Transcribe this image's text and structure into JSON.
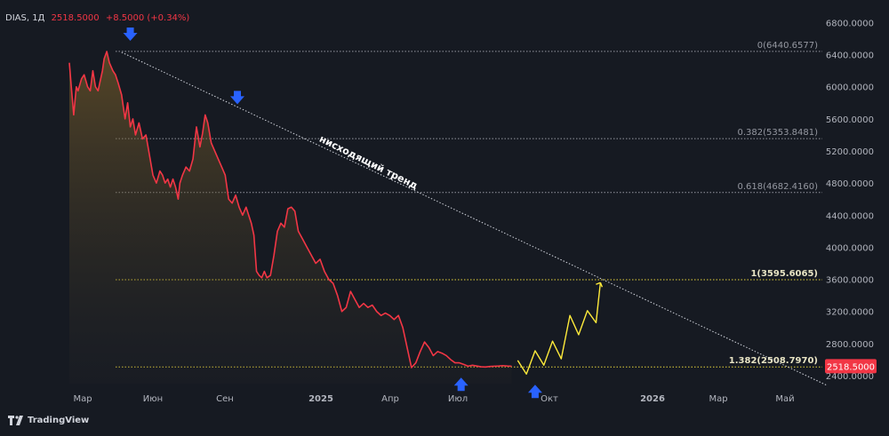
{
  "header": {
    "symbol": "DIAS, 1Д",
    "last": "2518.5000",
    "change": "+8.5000 (+0.34%)"
  },
  "brand": {
    "name": "TradingView",
    "icon": "tradingview-logo-icon"
  },
  "colors": {
    "background": "#161a22",
    "price_line": "#f23645",
    "projection": "#ffeb3b",
    "fib_line": "#9598a1",
    "fib_line_highlight": "#e6d43a",
    "trend_line": "#d1d4dc",
    "arrow": "#2962ff",
    "price_badge": "#f23645"
  },
  "chart_data": {
    "type": "line",
    "x_ticks": [
      "Мар",
      "Июн",
      "Сен",
      "2025",
      "Апр",
      "Июл",
      "Окт",
      "2026",
      "Мар",
      "Май"
    ],
    "y_ticks": [
      "2400.0000",
      "2800.0000",
      "3200.0000",
      "3600.0000",
      "4000.0000",
      "4400.0000",
      "4800.0000",
      "5200.0000",
      "5600.0000",
      "6000.0000",
      "6400.0000",
      "6800.0000"
    ],
    "ylim": [
      2220,
      6930
    ],
    "last_price_badge": "2518.5000",
    "fib_levels": [
      {
        "label": "0(6440.6577)",
        "value": 6440.6577,
        "highlight": false
      },
      {
        "label": "0.382(5353.8481)",
        "value": 5353.8481,
        "highlight": false
      },
      {
        "label": "0.618(4682.4160)",
        "value": 4682.416,
        "highlight": false
      },
      {
        "label": "1(3595.6065)",
        "value": 3595.6065,
        "highlight": true
      },
      {
        "label": "1.382(2508.7970)",
        "value": 2508.797,
        "highlight": true
      }
    ],
    "trend_label": "нисходящий тренд",
    "price_series": {
      "x": [
        0,
        3,
        5,
        8,
        10,
        14,
        17,
        21,
        24,
        27,
        30,
        33,
        36,
        38,
        40,
        43,
        46,
        50,
        53,
        56,
        60,
        62,
        64,
        67,
        70,
        73,
        76,
        80,
        84,
        88,
        92,
        96,
        100,
        104,
        107,
        110,
        113,
        116,
        119,
        122,
        125,
        127,
        130,
        134,
        138,
        142,
        146,
        150,
        153,
        156,
        159,
        163,
        167,
        171,
        175,
        179,
        183,
        187,
        191,
        195,
        199,
        203,
        206,
        209,
        212,
        215,
        218,
        221,
        224,
        227,
        231,
        235,
        239,
        243,
        247,
        251,
        255,
        259,
        263,
        268,
        273,
        278,
        283,
        288,
        293,
        298,
        303,
        308,
        313,
        318,
        323,
        328,
        333,
        338,
        343,
        348,
        353,
        358,
        363,
        368,
        373,
        378,
        383,
        388,
        393,
        398,
        403,
        408,
        413,
        418,
        423,
        428,
        433,
        438,
        443,
        448,
        453,
        458,
        463,
        468,
        473,
        478,
        483,
        488,
        493,
        498,
        503,
        508
      ],
      "y": [
        6300,
        5900,
        5650,
        6000,
        5950,
        6100,
        6150,
        6000,
        5950,
        6200,
        6000,
        5950,
        6100,
        6200,
        6350,
        6440,
        6300,
        6200,
        6150,
        6050,
        5900,
        5750,
        5600,
        5800,
        5500,
        5600,
        5400,
        5550,
        5350,
        5400,
        5150,
        4900,
        4800,
        4950,
        4900,
        4800,
        4850,
        4750,
        4850,
        4750,
        4600,
        4800,
        4900,
        5000,
        4950,
        5100,
        5500,
        5250,
        5420,
        5650,
        5550,
        5300,
        5200,
        5100,
        5000,
        4900,
        4600,
        4550,
        4650,
        4500,
        4400,
        4500,
        4400,
        4300,
        4150,
        3700,
        3650,
        3620,
        3700,
        3620,
        3650,
        3900,
        4200,
        4300,
        4250,
        4480,
        4500,
        4450,
        4200,
        4100,
        4000,
        3900,
        3800,
        3850,
        3700,
        3600,
        3550,
        3400,
        3200,
        3250,
        3450,
        3350,
        3250,
        3300,
        3250,
        3280,
        3200,
        3150,
        3180,
        3150,
        3100,
        3150,
        3000,
        2750,
        2500,
        2560,
        2700,
        2820,
        2750,
        2650,
        2700,
        2680,
        2650,
        2600,
        2560,
        2560,
        2540,
        2518,
        2530,
        2520,
        2510,
        2508,
        2515,
        2518,
        2520,
        2525,
        2520,
        2518
      ]
    },
    "projection_series": {
      "x": [
        515,
        525,
        535,
        545,
        555,
        565,
        575,
        585,
        595,
        605,
        610
      ],
      "y": [
        2590,
        2420,
        2710,
        2530,
        2830,
        2610,
        3150,
        2910,
        3210,
        3060,
        3560
      ]
    },
    "trend_line": {
      "x": [
        60,
        870
      ],
      "y": [
        6430,
        2280
      ]
    },
    "arrows": [
      {
        "dir": "down",
        "x": 70,
        "y": 6440,
        "name": "arrow-down-1"
      },
      {
        "dir": "down",
        "x": 193,
        "y": 5650,
        "name": "arrow-down-2"
      },
      {
        "dir": "up",
        "x": 450,
        "y": 2508,
        "name": "arrow-up-1"
      },
      {
        "dir": "up",
        "x": 535,
        "y": 2420,
        "name": "arrow-up-2"
      }
    ]
  }
}
